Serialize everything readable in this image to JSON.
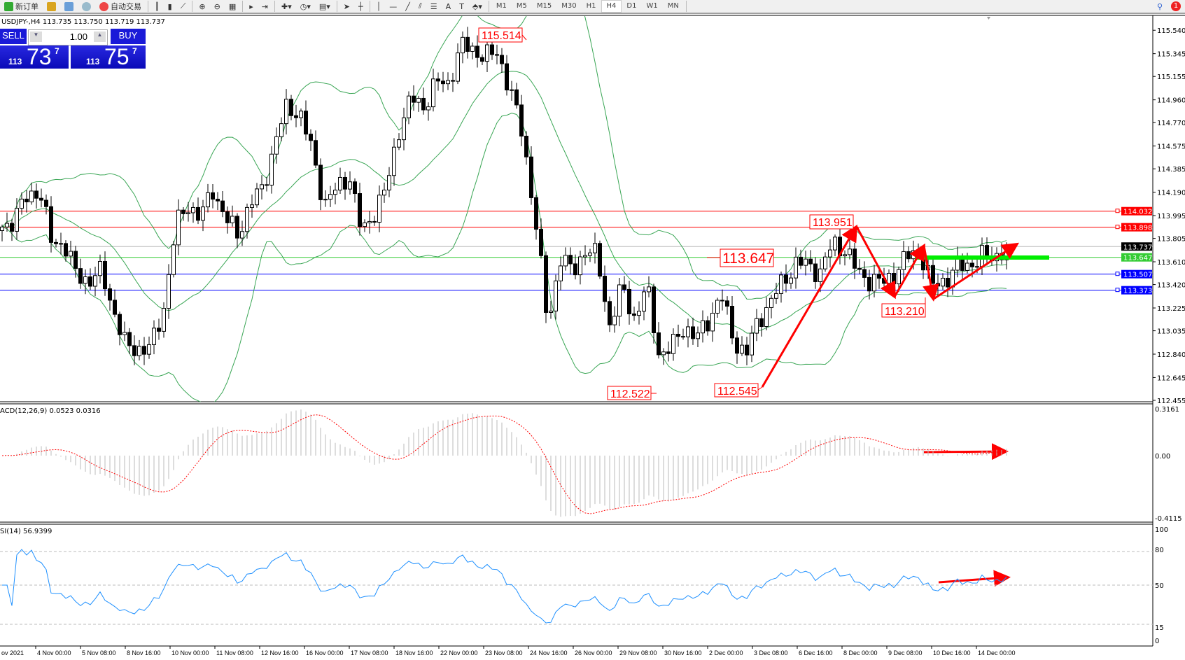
{
  "toolbar": {
    "new_order": "新订单",
    "auto_trading": "自动交易",
    "timeframes": [
      "M1",
      "M5",
      "M15",
      "M30",
      "H1",
      "H4",
      "D1",
      "W1",
      "MN"
    ],
    "active_timeframe": "H4",
    "notification_count": "1"
  },
  "chart": {
    "header": "USDJPY-,H4  113.735 113.750 113.719 113.737",
    "symbol": "USDJPY-",
    "timeframe": "H4"
  },
  "trade_panel": {
    "sell_label": "SELL",
    "buy_label": "BUY",
    "lot": "1.00",
    "sell_price": {
      "big": "113",
      "main": "73",
      "pip": "7"
    },
    "buy_price": {
      "big": "113",
      "main": "75",
      "pip": "7"
    }
  },
  "chart_data": [
    {
      "type": "candlestick",
      "price_axis": [
        "115.540",
        "115.345",
        "115.155",
        "114.960",
        "114.770",
        "114.575",
        "114.385",
        "114.190",
        "113.995",
        "113.805",
        "113.610",
        "113.420",
        "113.225",
        "113.035",
        "112.840",
        "112.645",
        "112.455"
      ],
      "ylim": [
        112.455,
        115.54
      ],
      "time_axis": [
        "ov 2021",
        "4 Nov 00:00",
        "5 Nov 08:00",
        "8 Nov 16:00",
        "10 Nov 00:00",
        "11 Nov 08:00",
        "12 Nov 16:00",
        "16 Nov 00:00",
        "17 Nov 08:00",
        "18 Nov 16:00",
        "22 Nov 00:00",
        "23 Nov 08:00",
        "24 Nov 16:00",
        "26 Nov 00:00",
        "29 Nov 08:00",
        "30 Nov 16:00",
        "2 Dec 00:00",
        "3 Dec 08:00",
        "6 Dec 16:00",
        "8 Dec 00:00",
        "9 Dec 08:00",
        "10 Dec 16:00",
        "14 Dec 00:00"
      ],
      "closes": [
        113.9,
        113.97,
        114.15,
        114.22,
        113.77,
        113.77,
        113.49,
        113.46,
        113.52,
        113.21,
        112.89,
        112.89,
        112.89,
        113.21,
        113.9,
        114.09,
        113.97,
        114.22,
        113.97,
        113.84,
        114.09,
        114.22,
        114.6,
        114.91,
        114.85,
        114.53,
        114.09,
        114.22,
        114.34,
        113.84,
        114.03,
        114.22,
        114.72,
        114.97,
        114.91,
        115.1,
        115.1,
        115.41,
        115.38,
        115.32,
        115.35,
        115.03,
        114.66,
        113.97,
        113.08,
        113.65,
        113.52,
        113.71,
        113.65,
        113.08,
        113.4,
        113.14,
        113.4,
        112.83,
        112.89,
        113.08,
        112.96,
        113.14,
        113.33,
        112.96,
        112.83,
        113.14,
        113.27,
        113.46,
        113.59,
        113.59,
        113.52,
        113.77,
        113.71,
        113.52,
        113.46,
        113.43,
        113.52,
        113.65,
        113.71,
        113.4,
        113.46,
        113.56,
        113.59,
        113.65,
        113.65,
        113.737
      ],
      "indicators": [
        "Bollinger Bands(20)"
      ],
      "levels": [
        {
          "value": "114.032",
          "color": "#ff0000"
        },
        {
          "value": "113.898",
          "color": "#ff0000"
        },
        {
          "value": "113.737",
          "color": "#000000"
        },
        {
          "value": "113.647",
          "color": "#33cc33"
        },
        {
          "value": "113.507",
          "color": "#0000ff"
        },
        {
          "value": "113.373",
          "color": "#0000ff"
        }
      ],
      "annotations": [
        "115.514",
        "113.951",
        "113.647",
        "113.210",
        "112.522",
        "112.545"
      ]
    },
    {
      "type": "histogram+line",
      "label": "ACD(12,26,9) 0.0523 0.0316",
      "axis": [
        "0.3161",
        "0.00",
        "-0.4115"
      ],
      "ylim": [
        -0.4115,
        0.3161
      ]
    },
    {
      "type": "line",
      "label": "SI(14) 56.9399",
      "axis": [
        "100",
        "80",
        "50",
        "15",
        "0"
      ],
      "ylim": [
        0,
        100
      ],
      "levels": [
        80,
        50,
        15
      ]
    }
  ],
  "colors": {
    "up_candle": "#ffffff",
    "down_candle": "#000000",
    "bands": "#3aa655",
    "macd_signal": "#ff0000",
    "rsi": "#1e90ff",
    "arrows": "#ff0000",
    "highlight": "#00ee00"
  }
}
